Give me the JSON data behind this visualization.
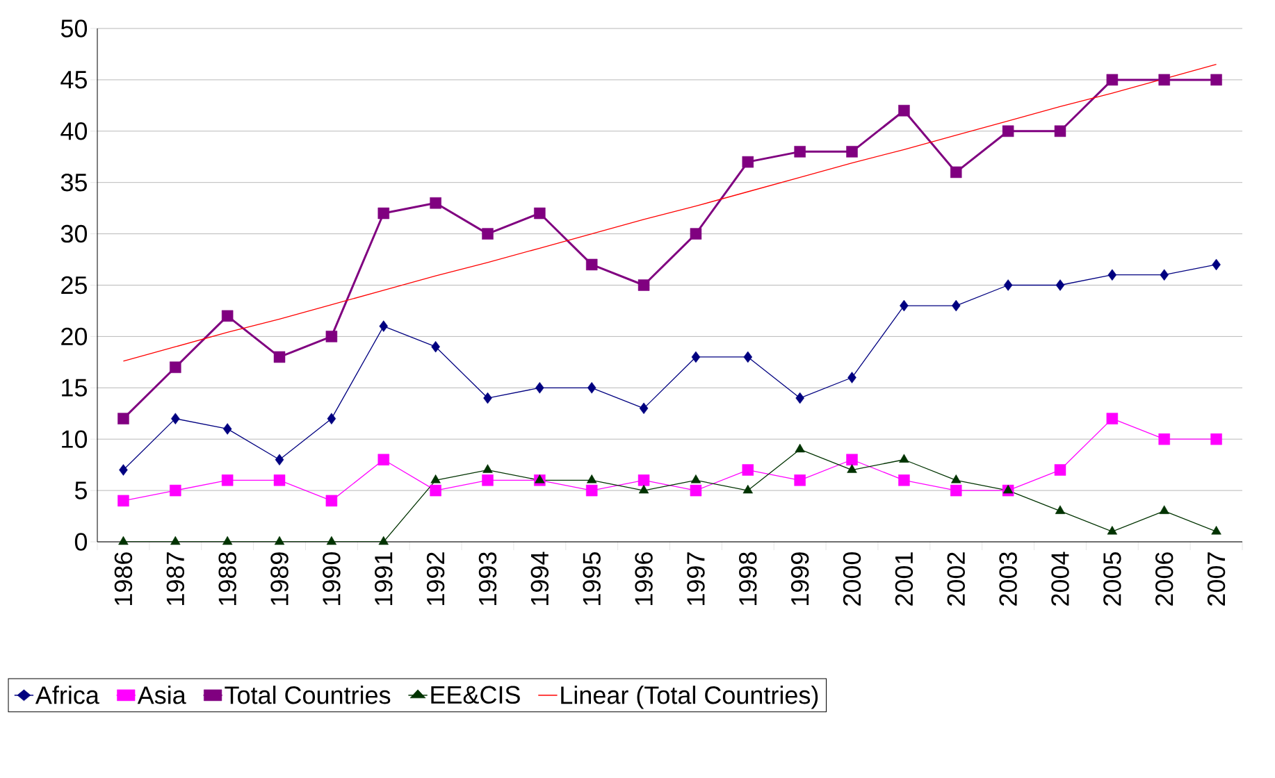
{
  "chart_data": {
    "type": "line",
    "categories": [
      "1986",
      "1987",
      "1988",
      "1989",
      "1990",
      "1991",
      "1992",
      "1993",
      "1994",
      "1995",
      "1996",
      "1997",
      "1998",
      "1999",
      "2000",
      "2001",
      "2002",
      "2003",
      "2004",
      "2005",
      "2006",
      "2007"
    ],
    "series": [
      {
        "name": "Africa",
        "color": "#000080",
        "marker": "diamond",
        "values": [
          7,
          12,
          11,
          8,
          12,
          21,
          19,
          14,
          15,
          15,
          13,
          18,
          18,
          14,
          16,
          23,
          23,
          25,
          25,
          26,
          26,
          27
        ]
      },
      {
        "name": "Asia",
        "color": "#ff00ff",
        "marker": "square",
        "values": [
          4,
          5,
          6,
          6,
          4,
          8,
          5,
          6,
          6,
          5,
          6,
          5,
          7,
          6,
          8,
          6,
          5,
          5,
          7,
          12,
          10,
          10
        ]
      },
      {
        "name": "Total Countries",
        "color": "#800080",
        "marker": "square",
        "values": [
          12,
          17,
          22,
          18,
          20,
          32,
          33,
          30,
          32,
          27,
          25,
          30,
          37,
          38,
          38,
          42,
          36,
          40,
          40,
          45,
          45,
          45
        ]
      },
      {
        "name": "EE&CIS",
        "color": "#003300",
        "marker": "triangle",
        "values": [
          0,
          0,
          0,
          0,
          0,
          0,
          6,
          7,
          6,
          6,
          5,
          6,
          5,
          9,
          7,
          8,
          6,
          5,
          3,
          1,
          3,
          1
        ]
      },
      {
        "name": "Linear (Total Countries)",
        "type": "line",
        "color": "#ff0000",
        "marker": "none",
        "values": [
          17.6,
          19.0,
          20.4,
          21.7,
          23.1,
          24.5,
          25.9,
          27.2,
          28.6,
          30.0,
          31.4,
          32.7,
          34.1,
          35.5,
          36.9,
          38.2,
          39.6,
          41.0,
          42.4,
          43.7,
          45.1,
          46.5
        ]
      }
    ],
    "ylim": [
      0,
      50
    ],
    "yticks": [
      0,
      5,
      10,
      15,
      20,
      25,
      30,
      35,
      40,
      45,
      50
    ],
    "grid": "y",
    "legend": "bottom"
  }
}
